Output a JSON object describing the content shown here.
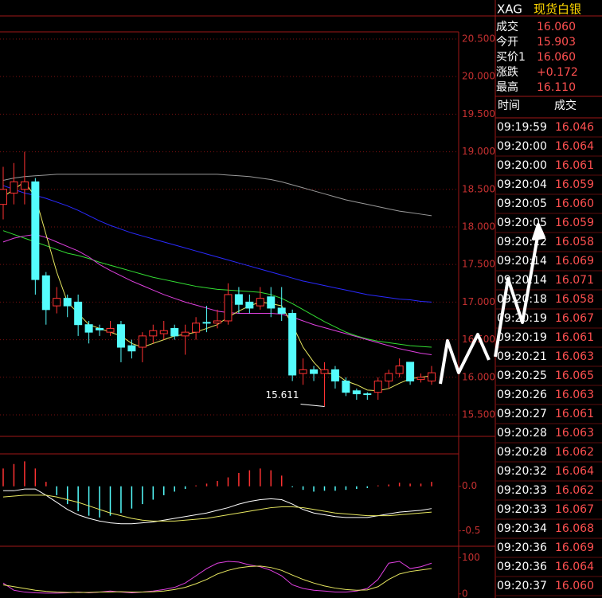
{
  "chart_data": [
    {
      "type": "candlestick",
      "up_color": "#ff3232",
      "down_color": "#54fcfc",
      "grid": true,
      "open": [
        18.3,
        18.45,
        18.5,
        18.6,
        17.35,
        16.95,
        17.05,
        17.0,
        16.7,
        16.65,
        16.6,
        16.7,
        16.42,
        16.4,
        16.55,
        16.58,
        16.65,
        16.55,
        16.6,
        16.73,
        16.72,
        16.75,
        17.1,
        17.0,
        16.95,
        17.07,
        16.92,
        16.85,
        16.05,
        16.1,
        16.05,
        16.1,
        15.95,
        15.82,
        15.78,
        15.8,
        15.95,
        16.05,
        16.2,
        15.97,
        15.95
      ],
      "high": [
        18.8,
        18.85,
        19.0,
        18.65,
        17.4,
        17.2,
        17.1,
        17.1,
        16.75,
        16.7,
        16.75,
        16.75,
        16.5,
        16.6,
        16.7,
        16.75,
        16.7,
        16.7,
        16.8,
        16.95,
        16.9,
        17.25,
        17.2,
        17.1,
        17.2,
        17.2,
        17.2,
        16.9,
        16.25,
        16.15,
        16.2,
        16.15,
        16.0,
        15.85,
        15.8,
        16.0,
        16.1,
        16.25,
        16.2,
        16.05,
        16.15
      ],
      "low": [
        18.1,
        18.3,
        18.3,
        17.1,
        16.7,
        16.85,
        16.8,
        16.55,
        16.45,
        16.55,
        16.55,
        16.2,
        16.25,
        16.2,
        16.45,
        16.5,
        16.5,
        16.3,
        16.5,
        16.6,
        16.65,
        16.7,
        16.85,
        16.85,
        16.9,
        16.8,
        16.75,
        15.95,
        15.9,
        15.95,
        15.611,
        15.85,
        15.75,
        15.7,
        15.7,
        15.7,
        15.85,
        16.0,
        15.9,
        15.93,
        15.9
      ],
      "close": [
        18.5,
        18.6,
        18.6,
        17.3,
        16.9,
        17.05,
        16.95,
        16.7,
        16.6,
        16.63,
        16.65,
        16.4,
        16.35,
        16.55,
        16.62,
        16.62,
        16.55,
        16.6,
        16.72,
        16.72,
        16.75,
        17.1,
        16.97,
        16.92,
        17.05,
        16.92,
        16.85,
        16.03,
        16.1,
        16.05,
        16.1,
        15.95,
        15.8,
        15.78,
        15.77,
        15.95,
        16.05,
        16.15,
        15.95,
        16.0,
        16.06
      ],
      "lines": [
        {
          "color": "#9a9a9a",
          "values": [
            18.62,
            18.65,
            18.67,
            18.68,
            18.69,
            18.7,
            18.7,
            18.7,
            18.7,
            18.7,
            18.7,
            18.7,
            18.7,
            18.7,
            18.7,
            18.7,
            18.7,
            18.7,
            18.7,
            18.7,
            18.7,
            18.69,
            18.68,
            18.67,
            18.65,
            18.63,
            18.6,
            18.56,
            18.52,
            18.48,
            18.44,
            18.4,
            18.36,
            18.33,
            18.3,
            18.27,
            18.24,
            18.21,
            18.19,
            18.17,
            18.15
          ]
        },
        {
          "color": "#2a2aff",
          "values": [
            18.55,
            18.5,
            18.45,
            18.42,
            18.38,
            18.33,
            18.28,
            18.22,
            18.15,
            18.08,
            18.02,
            17.97,
            17.92,
            17.88,
            17.84,
            17.8,
            17.76,
            17.72,
            17.68,
            17.64,
            17.6,
            17.56,
            17.52,
            17.48,
            17.44,
            17.4,
            17.36,
            17.32,
            17.28,
            17.25,
            17.22,
            17.19,
            17.16,
            17.13,
            17.1,
            17.08,
            17.06,
            17.04,
            17.03,
            17.01,
            17.0
          ]
        },
        {
          "color": "#33dd33",
          "values": [
            17.95,
            17.9,
            17.85,
            17.8,
            17.75,
            17.7,
            17.65,
            17.62,
            17.58,
            17.53,
            17.49,
            17.45,
            17.41,
            17.37,
            17.33,
            17.3,
            17.27,
            17.24,
            17.21,
            17.19,
            17.17,
            17.16,
            17.15,
            17.14,
            17.13,
            17.1,
            17.05,
            16.98,
            16.9,
            16.82,
            16.74,
            16.67,
            16.6,
            16.55,
            16.51,
            16.48,
            16.46,
            16.44,
            16.42,
            16.41,
            16.4
          ]
        },
        {
          "color": "#e040e0",
          "values": [
            17.8,
            17.85,
            17.88,
            17.9,
            17.86,
            17.8,
            17.74,
            17.68,
            17.6,
            17.5,
            17.42,
            17.35,
            17.28,
            17.22,
            17.16,
            17.1,
            17.05,
            17.0,
            16.96,
            16.92,
            16.88,
            16.86,
            16.85,
            16.85,
            16.85,
            16.85,
            16.84,
            16.8,
            16.75,
            16.7,
            16.66,
            16.62,
            16.58,
            16.54,
            16.5,
            16.46,
            16.42,
            16.38,
            16.35,
            16.32,
            16.3
          ]
        },
        {
          "color": "#e8e860",
          "values": [
            18.4,
            18.5,
            18.6,
            18.4,
            17.9,
            17.4,
            17.0,
            16.85,
            16.7,
            16.65,
            16.6,
            16.55,
            16.45,
            16.4,
            16.45,
            16.5,
            16.55,
            16.57,
            16.6,
            16.65,
            16.7,
            16.8,
            16.88,
            16.95,
            17.0,
            16.98,
            16.95,
            16.7,
            16.4,
            16.2,
            16.05,
            16.05,
            15.95,
            15.9,
            15.83,
            15.82,
            15.85,
            15.92,
            15.98,
            16.0,
            16.02
          ]
        }
      ],
      "ylim": [
        15.214,
        20.595
      ],
      "yticks": [
        {
          "value": 20.5,
          "label": "20.500"
        },
        {
          "value": 20,
          "label": "20.000"
        },
        {
          "value": 19.5,
          "label": "19.500"
        },
        {
          "value": 19,
          "label": "19.000"
        },
        {
          "value": 18.5,
          "label": "18.500"
        },
        {
          "value": 18,
          "label": "18.000"
        },
        {
          "value": 17.5,
          "label": "17.500"
        },
        {
          "value": 17,
          "label": "17.000"
        },
        {
          "value": 16.5,
          "label": "16.500"
        },
        {
          "value": 16,
          "label": "16.000"
        },
        {
          "value": 15.5,
          "label": "15.500"
        }
      ]
    },
    {
      "type": "macd",
      "up_color": "#ff3232",
      "down_color": "#54fcfc",
      "grid": false,
      "values": [
        0.2,
        0.25,
        0.28,
        0.2,
        0.05,
        -0.1,
        -0.2,
        -0.28,
        -0.33,
        -0.35,
        -0.33,
        -0.3,
        -0.25,
        -0.2,
        -0.15,
        -0.1,
        -0.06,
        -0.03,
        0.01,
        0.03,
        0.06,
        0.1,
        0.15,
        0.18,
        0.2,
        0.18,
        0.12,
        -0.01,
        -0.04,
        -0.06,
        -0.05,
        -0.05,
        -0.04,
        -0.03,
        -0.02,
        0.01,
        0.02,
        0.04,
        0.03,
        0.03,
        0.05
      ],
      "lines": [
        {
          "color": "#ffffff",
          "values": [
            -0.05,
            -0.05,
            -0.03,
            -0.03,
            -0.1,
            -0.18,
            -0.26,
            -0.32,
            -0.36,
            -0.39,
            -0.41,
            -0.42,
            -0.42,
            -0.41,
            -0.4,
            -0.38,
            -0.36,
            -0.34,
            -0.32,
            -0.3,
            -0.27,
            -0.24,
            -0.2,
            -0.17,
            -0.15,
            -0.14,
            -0.15,
            -0.2,
            -0.26,
            -0.3,
            -0.32,
            -0.34,
            -0.35,
            -0.35,
            -0.35,
            -0.33,
            -0.31,
            -0.29,
            -0.28,
            -0.27,
            -0.25
          ]
        },
        {
          "color": "#e8e860",
          "values": [
            -0.12,
            -0.11,
            -0.1,
            -0.1,
            -0.1,
            -0.12,
            -0.15,
            -0.18,
            -0.22,
            -0.26,
            -0.3,
            -0.33,
            -0.36,
            -0.38,
            -0.39,
            -0.39,
            -0.39,
            -0.38,
            -0.37,
            -0.36,
            -0.34,
            -0.32,
            -0.3,
            -0.28,
            -0.26,
            -0.24,
            -0.23,
            -0.23,
            -0.24,
            -0.26,
            -0.28,
            -0.3,
            -0.31,
            -0.32,
            -0.33,
            -0.33,
            -0.33,
            -0.32,
            -0.31,
            -0.3,
            -0.29
          ]
        }
      ],
      "ylim": [
        -0.673,
        0.364
      ],
      "yticks": [
        {
          "value": 0,
          "label": "0.0"
        },
        {
          "value": -0.5,
          "label": "-0.5"
        }
      ]
    },
    {
      "type": "kdj",
      "grid": false,
      "lines": [
        {
          "color": "#e040e0",
          "values": [
            30,
            10,
            5,
            3,
            2,
            2,
            3,
            5,
            3,
            5,
            8,
            5,
            3,
            5,
            8,
            12,
            18,
            30,
            50,
            70,
            85,
            90,
            88,
            80,
            75,
            65,
            50,
            25,
            15,
            10,
            8,
            5,
            5,
            8,
            15,
            40,
            85,
            90,
            70,
            75,
            85
          ]
        },
        {
          "color": "#e8e860",
          "values": [
            25,
            20,
            15,
            10,
            7,
            5,
            4,
            4,
            4,
            5,
            5,
            6,
            5,
            5,
            6,
            8,
            12,
            18,
            28,
            40,
            55,
            65,
            72,
            76,
            77,
            73,
            65,
            52,
            40,
            30,
            22,
            16,
            12,
            10,
            11,
            20,
            40,
            55,
            62,
            66,
            70
          ]
        }
      ],
      "ylim": [
        -11.4,
        131.8
      ],
      "yticks": [
        100,
        0
      ]
    }
  ],
  "quote": {
    "symbol": "XAG",
    "name": "现货白银",
    "fields": [
      {
        "label": "成交",
        "value": "16.060"
      },
      {
        "label": "今开",
        "value": "15.903"
      },
      {
        "label": "买价1",
        "value": "16.060"
      },
      {
        "label": "涨跌",
        "value": "+0.172"
      },
      {
        "label": "最高",
        "value": "16.110"
      }
    ]
  },
  "trades": {
    "header": [
      "时间",
      "成交"
    ],
    "rows": [
      [
        "09:19:59",
        "16.046"
      ],
      [
        "09:20:00",
        "16.064"
      ],
      [
        "09:20:00",
        "16.061"
      ],
      [
        "09:20:04",
        "16.059"
      ],
      [
        "09:20:05",
        "16.060"
      ],
      [
        "09:20:05",
        "16.059"
      ],
      [
        "09:20:12",
        "16.058"
      ],
      [
        "09:20:14",
        "16.069"
      ],
      [
        "09:20:14",
        "16.071"
      ],
      [
        "09:20:18",
        "16.058"
      ],
      [
        "09:20:19",
        "16.067"
      ],
      [
        "09:20:19",
        "16.061"
      ],
      [
        "09:20:21",
        "16.063"
      ],
      [
        "09:20:25",
        "16.065"
      ],
      [
        "09:20:26",
        "16.063"
      ],
      [
        "09:20:27",
        "16.061"
      ],
      [
        "09:20:28",
        "16.063"
      ],
      [
        "09:20:28",
        "16.062"
      ],
      [
        "09:20:32",
        "16.064"
      ],
      [
        "09:20:33",
        "16.062"
      ],
      [
        "09:20:33",
        "16.067"
      ],
      [
        "09:20:34",
        "16.068"
      ],
      [
        "09:20:36",
        "16.069"
      ],
      [
        "09:20:36",
        "16.064"
      ],
      [
        "09:20:37",
        "16.060"
      ]
    ]
  }
}
